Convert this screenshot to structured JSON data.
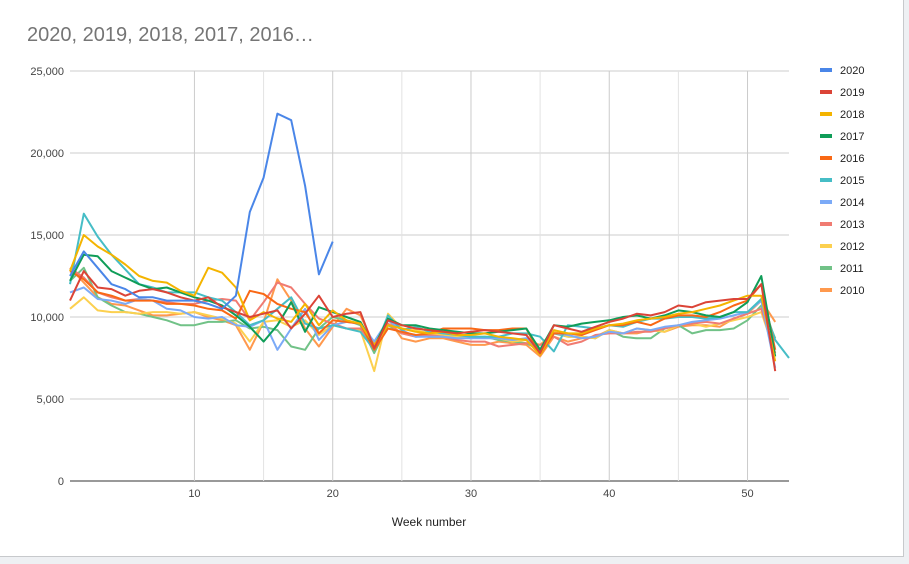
{
  "chart_data": {
    "type": "line",
    "title": "2020, 2019, 2018, 2017, 2016…",
    "xlabel": "Week number",
    "ylabel": "",
    "xlim": [
      1,
      53
    ],
    "ylim": [
      0,
      25000
    ],
    "x_ticks": [
      10,
      20,
      30,
      40,
      50
    ],
    "y_ticks": [
      0,
      5000,
      10000,
      15000,
      20000,
      25000
    ],
    "x_tick_labels": [
      "10",
      "20",
      "30",
      "40",
      "50"
    ],
    "y_tick_labels": [
      "0",
      "5,000",
      "10,000",
      "15,000",
      "20,000",
      "25,000"
    ],
    "grid": true,
    "legend_position": "right",
    "series": [
      {
        "name": "2020",
        "color": "#4a86e8",
        "x_start": 1,
        "values": [
          12500,
          14000,
          13000,
          12000,
          11700,
          11200,
          11200,
          11000,
          11000,
          11000,
          10800,
          10500,
          11300,
          16400,
          18500,
          22400,
          22000,
          18000,
          12600,
          14600
        ]
      },
      {
        "name": "2019",
        "color": "#db4437",
        "x_start": 1,
        "values": [
          11000,
          12800,
          11800,
          11700,
          11300,
          11600,
          11700,
          11500,
          11200,
          11000,
          11200,
          10600,
          10300,
          10000,
          10200,
          10400,
          9300,
          10200,
          11300,
          10000,
          10200,
          10300,
          8100,
          9800,
          9500,
          9300,
          9200,
          9100,
          9000,
          9100,
          9200,
          9100,
          9000,
          8900,
          7800,
          9500,
          9300,
          9100,
          9400,
          9700,
          9900,
          10200,
          10100,
          10300,
          10700,
          10600,
          10900,
          11000,
          11100,
          11100,
          12000,
          6700
        ]
      },
      {
        "name": "2018",
        "color": "#f4b400",
        "x_start": 1,
        "values": [
          12800,
          15000,
          14300,
          13800,
          13200,
          12500,
          12200,
          12100,
          11600,
          11300,
          13000,
          12700,
          11800,
          9800,
          10300,
          9900,
          9700,
          10800,
          9500,
          10400,
          9800,
          9600,
          8300,
          9500,
          9300,
          9100,
          9000,
          9100,
          8900,
          8900,
          9000,
          8800,
          8700,
          8600,
          7700,
          9200,
          9000,
          9000,
          9300,
          9500,
          9600,
          9800,
          9900,
          10000,
          10200,
          10300,
          10500,
          10700,
          11000,
          11300,
          11300,
          7300
        ]
      },
      {
        "name": "2017",
        "color": "#0f9d58",
        "x_start": 1,
        "values": [
          12200,
          13800,
          13700,
          12800,
          12400,
          12000,
          11700,
          11800,
          11500,
          11200,
          11000,
          10700,
          10100,
          9400,
          8500,
          9500,
          10900,
          9100,
          10600,
          10300,
          10000,
          9700,
          8200,
          9900,
          9500,
          9500,
          9300,
          9200,
          9100,
          9000,
          9000,
          9100,
          9200,
          9300,
          8000,
          9500,
          9400,
          9600,
          9700,
          9800,
          10000,
          10100,
          9900,
          10100,
          10400,
          10300,
          10100,
          10000,
          10300,
          10900,
          12500,
          7600
        ]
      },
      {
        "name": "2016",
        "color": "#f96815",
        "x_start": 1,
        "values": [
          12800,
          12300,
          11500,
          11300,
          11000,
          11000,
          11000,
          10800,
          10800,
          10700,
          10500,
          10400,
          9900,
          11600,
          11400,
          10800,
          10500,
          10300,
          9000,
          9800,
          9700,
          9600,
          8000,
          9300,
          9100,
          8900,
          9000,
          9300,
          9300,
          9300,
          9200,
          9200,
          9300,
          9300,
          7700,
          9000,
          9000,
          8900,
          9200,
          9500,
          9500,
          9700,
          9500,
          9900,
          10100,
          10100,
          10000,
          10300,
          10700,
          11000,
          12000,
          8000
        ]
      },
      {
        "name": "2015",
        "color": "#46bdc6",
        "x_start": 1,
        "values": [
          12000,
          16300,
          14900,
          13800,
          12900,
          12000,
          11800,
          11500,
          11500,
          11500,
          11200,
          11000,
          10300,
          9500,
          9800,
          10500,
          11200,
          9600,
          9300,
          9500,
          9300,
          9100,
          8000,
          10100,
          9200,
          9400,
          9100,
          9000,
          8900,
          8800,
          8800,
          8800,
          9000,
          9000,
          8800,
          7900,
          9500,
          9400,
          9300,
          9500,
          9400,
          9700,
          9900,
          9900,
          10000,
          10000,
          9900,
          10000,
          10300,
          10300,
          11100,
          8600,
          7500
        ]
      },
      {
        "name": "2014",
        "color": "#7baaf7",
        "x_start": 1,
        "values": [
          11500,
          11800,
          11100,
          11000,
          10800,
          11100,
          11000,
          10500,
          10400,
          10000,
          9900,
          10000,
          9500,
          9400,
          9800,
          8000,
          9300,
          10500,
          8600,
          9500,
          9700,
          9600,
          8500,
          9800,
          9200,
          8800,
          8800,
          8800,
          8700,
          8700,
          8700,
          8700,
          8600,
          8700,
          7800,
          9000,
          8900,
          8700,
          8800,
          9100,
          9000,
          9300,
          9200,
          9400,
          9500,
          9700,
          9800,
          9900,
          10100,
          10300,
          11000,
          6900
        ]
      },
      {
        "name": "2013",
        "color": "#f07b72",
        "x_start": 1,
        "values": [
          13000,
          12400,
          11500,
          11200,
          11000,
          11100,
          11000,
          10900,
          10800,
          10800,
          11000,
          11100,
          11000,
          9800,
          10900,
          12100,
          11800,
          10800,
          9900,
          9600,
          9300,
          9300,
          8200,
          9600,
          9000,
          8800,
          8900,
          8800,
          8600,
          8500,
          8500,
          8200,
          8300,
          8400,
          8300,
          8800,
          8300,
          8500,
          8900,
          9000,
          9000,
          9100,
          9100,
          9300,
          9500,
          9600,
          9700,
          9600,
          9900,
          10200,
          10500,
          7800
        ]
      },
      {
        "name": "2012",
        "color": "#fcd04f",
        "x_start": 1,
        "values": [
          10500,
          11200,
          10400,
          10300,
          10300,
          10200,
          10300,
          10300,
          10200,
          10300,
          10100,
          9900,
          9600,
          8500,
          9700,
          9800,
          9400,
          9800,
          8900,
          9500,
          9300,
          9200,
          6700,
          10200,
          9300,
          9200,
          9000,
          8900,
          8800,
          8800,
          8800,
          8700,
          8500,
          8600,
          8300,
          9100,
          8800,
          8800,
          8700,
          9200,
          9000,
          9300,
          9200,
          9100,
          9500,
          9600,
          9400,
          9600,
          9800,
          10000,
          10300,
          7800
        ]
      },
      {
        "name": "2011",
        "color": "#71c287",
        "x_start": 1,
        "values": [
          12200,
          13000,
          11200,
          10700,
          10300,
          10200,
          10000,
          9800,
          9500,
          9500,
          9700,
          9700,
          9800,
          9300,
          9400,
          9200,
          8200,
          8000,
          9300,
          10000,
          9800,
          9500,
          7800,
          9500,
          9000,
          8900,
          8800,
          8800,
          8800,
          8700,
          8800,
          8600,
          8500,
          8400,
          8000,
          9000,
          8800,
          8800,
          8700,
          9200,
          8800,
          8700,
          8700,
          9300,
          9500,
          9000,
          9200,
          9200,
          9300,
          9800,
          10700,
          8700
        ]
      },
      {
        "name": "2010",
        "color": "#ff994d",
        "x_start": 1,
        "values": [
          13000,
          12100,
          11200,
          10800,
          10700,
          10400,
          10100,
          10100,
          10200,
          10300,
          10000,
          9800,
          9500,
          8000,
          9700,
          12300,
          11000,
          9300,
          8200,
          9400,
          10500,
          10100,
          8300,
          9900,
          8700,
          8500,
          8700,
          8700,
          8500,
          8300,
          8300,
          8500,
          8400,
          8300,
          7600,
          8800,
          8500,
          8700,
          8800,
          9200,
          9000,
          9000,
          9200,
          9100,
          9400,
          9500,
          9500,
          9400,
          9900,
          10200,
          11000,
          9700
        ]
      }
    ]
  }
}
